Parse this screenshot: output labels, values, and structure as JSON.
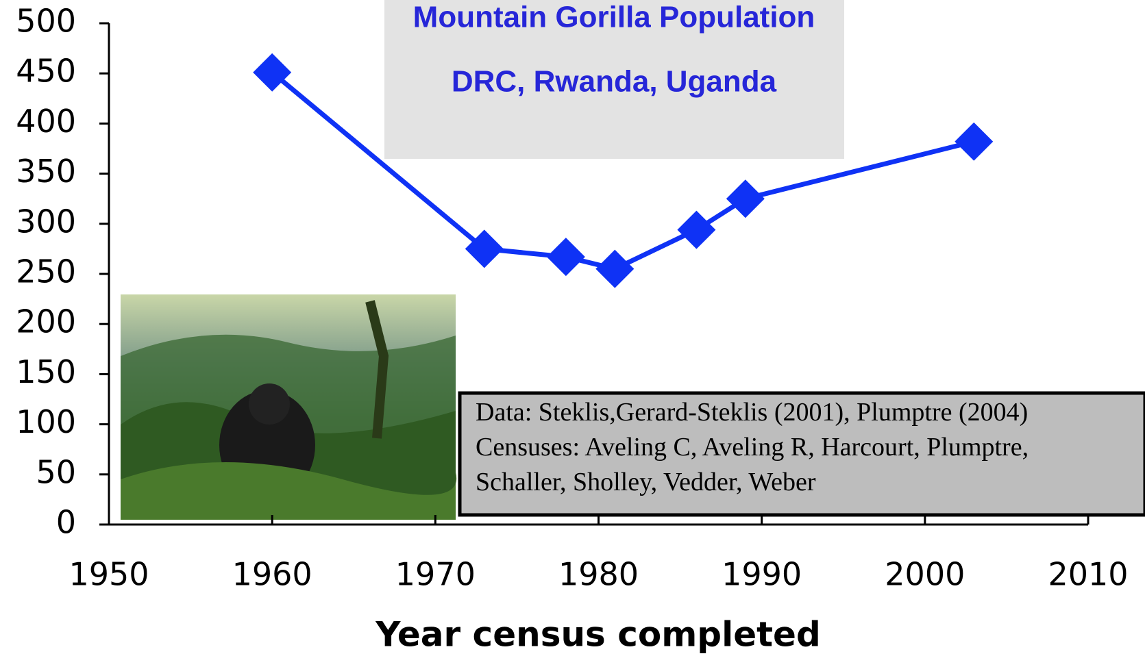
{
  "chart_data": {
    "type": "line",
    "title": "Mountain Gorilla Population",
    "subtitle": "DRC, Rwanda, Uganda",
    "x": [
      1960,
      1973,
      1978,
      1981,
      1986,
      1989,
      2003
    ],
    "series": [
      {
        "name": "Mountain gorillas",
        "color": "#0f32f5",
        "values": [
          451,
          275,
          267,
          255,
          294,
          325,
          382
        ]
      }
    ],
    "xlim": [
      1950,
      2010
    ],
    "xticks": [
      1950,
      1960,
      1970,
      1980,
      1990,
      2000,
      2010
    ],
    "ylim": [
      0,
      500
    ],
    "yticks": [
      0,
      50,
      100,
      150,
      200,
      250,
      300,
      350,
      400,
      450,
      500
    ],
    "xlabel": "Year census completed",
    "annotations": [
      "Data: Steklis,Gerard-Steklis (2001), Plumptre (2004)",
      "Censuses: Aveling C, Aveling R, Harcourt, Plumptre,",
      "Schaller, Sholley, Vedder, Weber"
    ]
  }
}
